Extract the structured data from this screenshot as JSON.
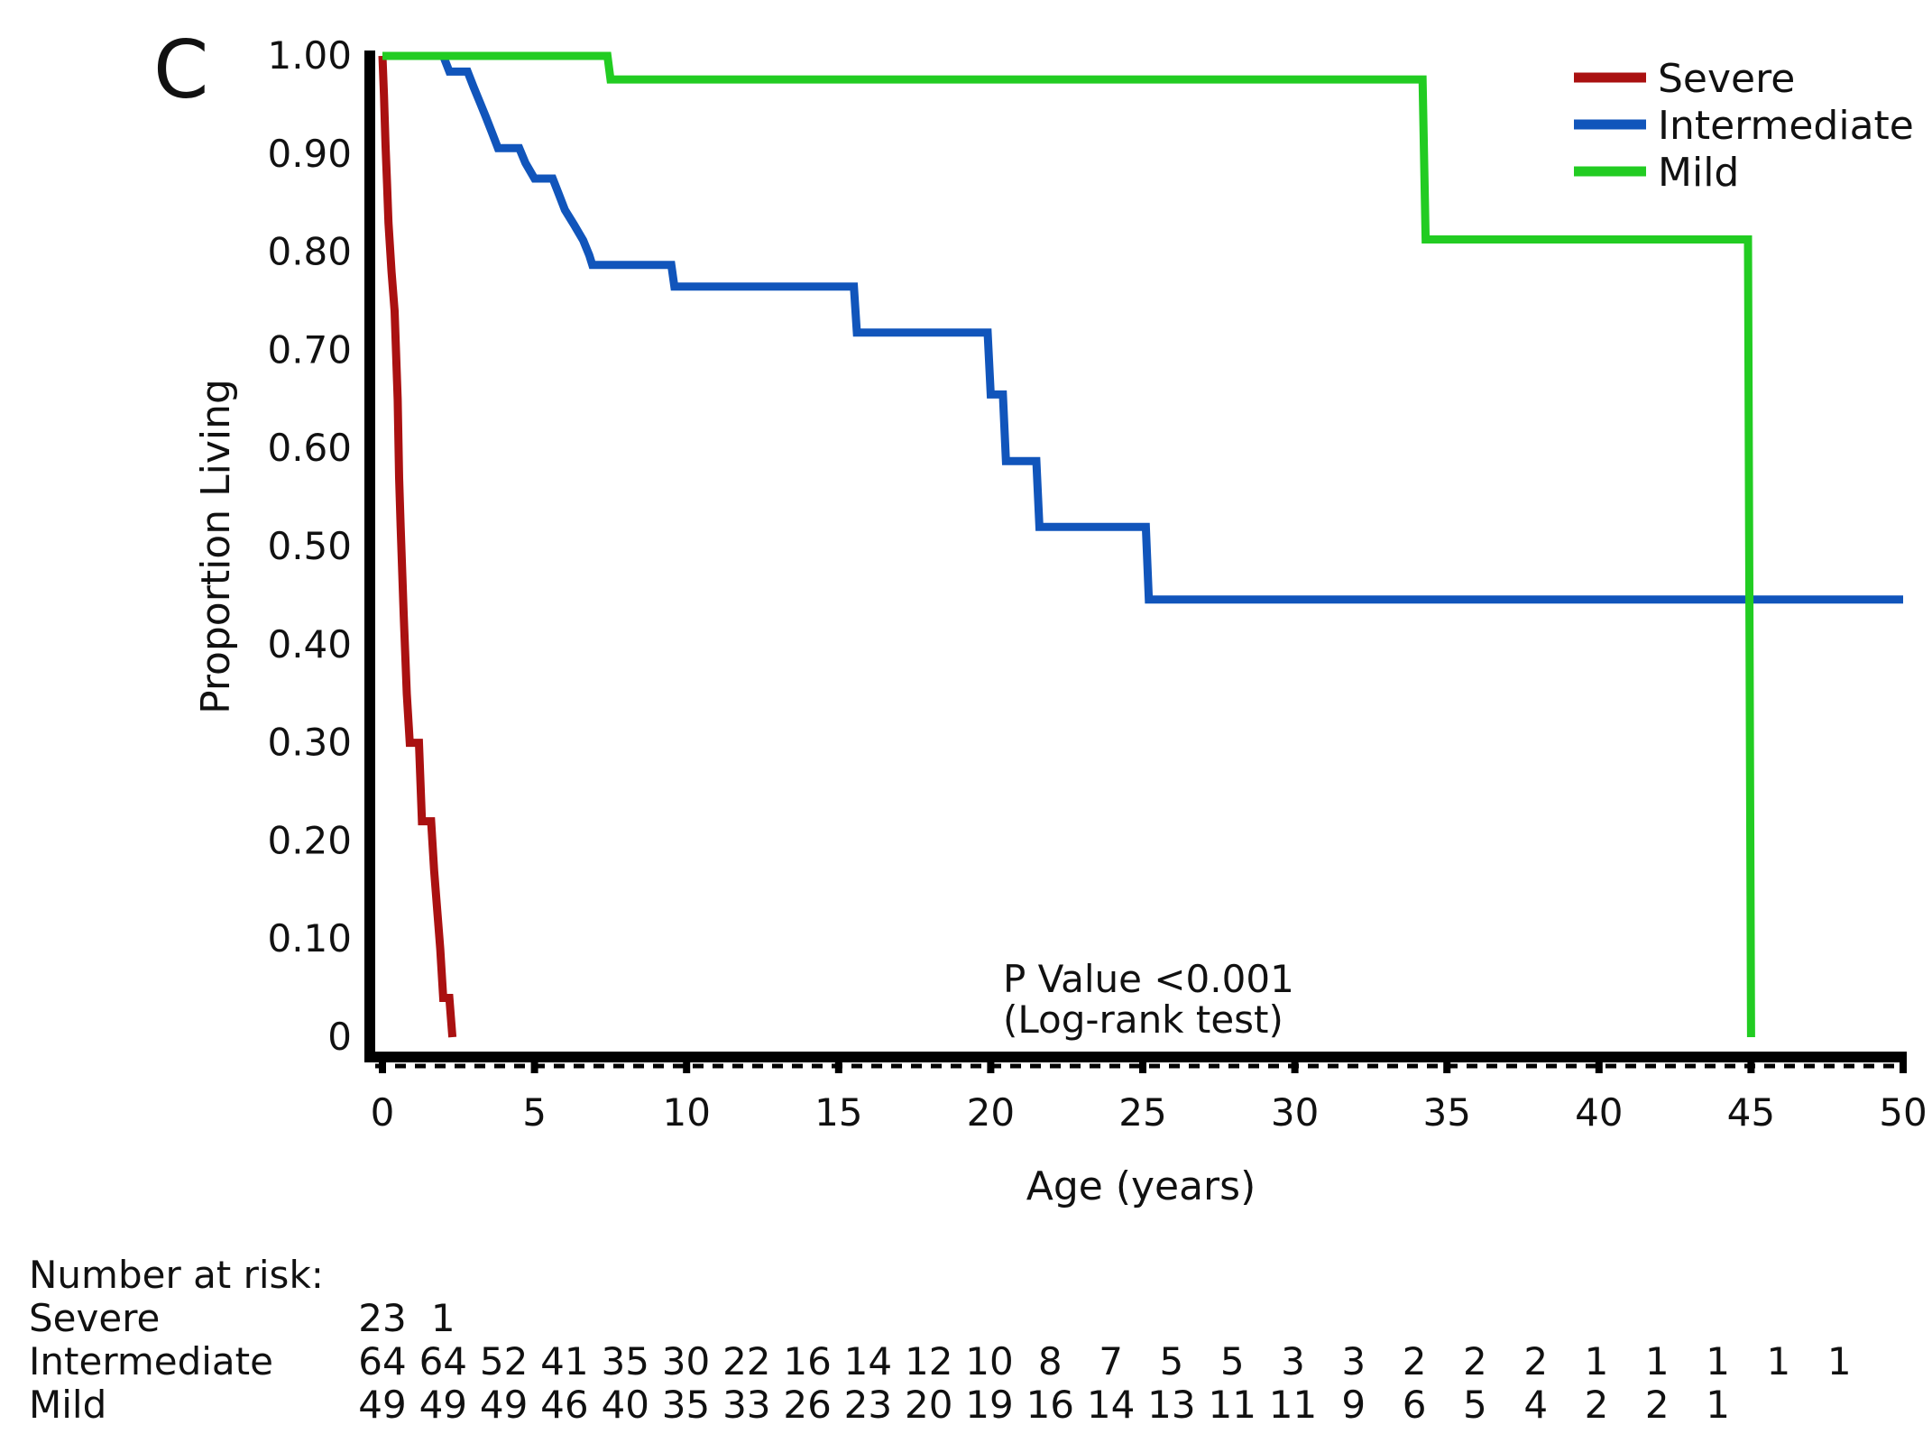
{
  "panel_label": "C",
  "chart_data": {
    "type": "line",
    "step": true,
    "title": "",
    "xlabel": "Age (years)",
    "ylabel": "Proportion Living",
    "xlim": [
      0,
      50
    ],
    "ylim": [
      0,
      1
    ],
    "xticks": [
      0,
      5,
      10,
      15,
      20,
      25,
      30,
      35,
      40,
      45,
      50
    ],
    "x_tick_labels": [
      "0",
      "5",
      "10",
      "15",
      "20",
      "25",
      "30",
      "35",
      "40",
      "45",
      "50"
    ],
    "yticks": [
      0,
      0.1,
      0.2,
      0.3,
      0.4,
      0.5,
      0.6,
      0.7,
      0.8,
      0.9,
      1.0
    ],
    "y_tick_labels": [
      "0",
      "0.10",
      "0.20",
      "0.30",
      "0.40",
      "0.50",
      "0.60",
      "0.70",
      "0.80",
      "0.90",
      "1.00"
    ],
    "grid": false,
    "legend_position": "top-right",
    "series": [
      {
        "name": "Severe",
        "color": "#aa1111",
        "points": [
          [
            0,
            1.0
          ],
          [
            0.05,
            0.96
          ],
          [
            0.1,
            0.91
          ],
          [
            0.15,
            0.87
          ],
          [
            0.2,
            0.83
          ],
          [
            0.3,
            0.78
          ],
          [
            0.4,
            0.74
          ],
          [
            0.5,
            0.65
          ],
          [
            0.55,
            0.57
          ],
          [
            0.6,
            0.52
          ],
          [
            0.7,
            0.43
          ],
          [
            0.8,
            0.35
          ],
          [
            0.9,
            0.3
          ],
          [
            1.2,
            0.3
          ],
          [
            1.3,
            0.22
          ],
          [
            1.6,
            0.22
          ],
          [
            1.7,
            0.17
          ],
          [
            1.8,
            0.13
          ],
          [
            1.9,
            0.09
          ],
          [
            2.0,
            0.04
          ],
          [
            2.2,
            0.04
          ],
          [
            2.3,
            0.0
          ]
        ]
      },
      {
        "name": "Intermediate",
        "color": "#1155bb",
        "points": [
          [
            0,
            1.0
          ],
          [
            2.0,
            1.0
          ],
          [
            2.2,
            0.984
          ],
          [
            2.8,
            0.984
          ],
          [
            3.0,
            0.968
          ],
          [
            3.2,
            0.953
          ],
          [
            3.4,
            0.938
          ],
          [
            3.6,
            0.922
          ],
          [
            3.8,
            0.906
          ],
          [
            4.5,
            0.906
          ],
          [
            4.7,
            0.891
          ],
          [
            5.0,
            0.875
          ],
          [
            5.6,
            0.875
          ],
          [
            5.8,
            0.859
          ],
          [
            6.0,
            0.843
          ],
          [
            6.3,
            0.828
          ],
          [
            6.6,
            0.812
          ],
          [
            6.8,
            0.797
          ],
          [
            6.9,
            0.787
          ],
          [
            9.5,
            0.787
          ],
          [
            9.6,
            0.765
          ],
          [
            15.5,
            0.765
          ],
          [
            15.6,
            0.718
          ],
          [
            19.9,
            0.718
          ],
          [
            20.0,
            0.655
          ],
          [
            20.4,
            0.655
          ],
          [
            20.5,
            0.587
          ],
          [
            21.5,
            0.587
          ],
          [
            21.6,
            0.52
          ],
          [
            25.1,
            0.52
          ],
          [
            25.2,
            0.446
          ],
          [
            50,
            0.446
          ]
        ]
      },
      {
        "name": "Mild",
        "color": "#22cc22",
        "points": [
          [
            0,
            1.0
          ],
          [
            7.4,
            1.0
          ],
          [
            7.5,
            0.976
          ],
          [
            34.2,
            0.976
          ],
          [
            34.3,
            0.813
          ],
          [
            44.9,
            0.813
          ],
          [
            45.0,
            0.0
          ]
        ]
      }
    ],
    "annotations": [
      "P Value <0.001",
      "(Log-rank test)"
    ],
    "risk_table": {
      "title": "Number at risk:",
      "rows": [
        {
          "label": "Severe",
          "values": [
            "23",
            "1"
          ]
        },
        {
          "label": "Intermediate",
          "values": [
            "64",
            "64",
            "52",
            "41",
            "35",
            "30",
            "22",
            "16",
            "14",
            "12",
            "10",
            "8",
            "7",
            "5",
            "5",
            "3",
            "3",
            "2",
            "2",
            "2",
            "1",
            "1",
            "1",
            "1",
            "1"
          ]
        },
        {
          "label": "Mild",
          "values": [
            "49",
            "49",
            "49",
            "46",
            "40",
            "35",
            "33",
            "26",
            "23",
            "20",
            "19",
            "16",
            "14",
            "13",
            "11",
            "11",
            "9",
            "6",
            "5",
            "4",
            "2",
            "2",
            "1"
          ]
        }
      ]
    }
  }
}
